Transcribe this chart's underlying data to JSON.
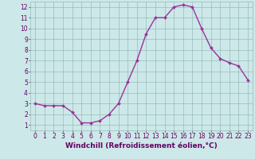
{
  "x": [
    0,
    1,
    2,
    3,
    4,
    5,
    6,
    7,
    8,
    9,
    10,
    11,
    12,
    13,
    14,
    15,
    16,
    17,
    18,
    19,
    20,
    21,
    22,
    23
  ],
  "y": [
    3.0,
    2.8,
    2.8,
    2.8,
    2.2,
    1.2,
    1.2,
    1.4,
    2.0,
    3.0,
    5.0,
    7.0,
    9.5,
    11.0,
    11.0,
    12.0,
    12.2,
    12.0,
    10.0,
    8.2,
    7.2,
    6.8,
    6.5,
    5.2
  ],
  "line_color": "#993399",
  "marker": "D",
  "marker_size": 2,
  "xlabel": "Windchill (Refroidissement éolien,°C)",
  "xlim_min": -0.5,
  "xlim_max": 23.5,
  "ylim_min": 0.5,
  "ylim_max": 12.5,
  "yticks": [
    1,
    2,
    3,
    4,
    5,
    6,
    7,
    8,
    9,
    10,
    11,
    12
  ],
  "xticks": [
    0,
    1,
    2,
    3,
    4,
    5,
    6,
    7,
    8,
    9,
    10,
    11,
    12,
    13,
    14,
    15,
    16,
    17,
    18,
    19,
    20,
    21,
    22,
    23
  ],
  "bg_color": "#cce8e8",
  "grid_color": "#99bbbb",
  "xlabel_fontsize": 6.5,
  "tick_fontsize": 5.5,
  "label_color": "#660066",
  "line_width": 1.0
}
